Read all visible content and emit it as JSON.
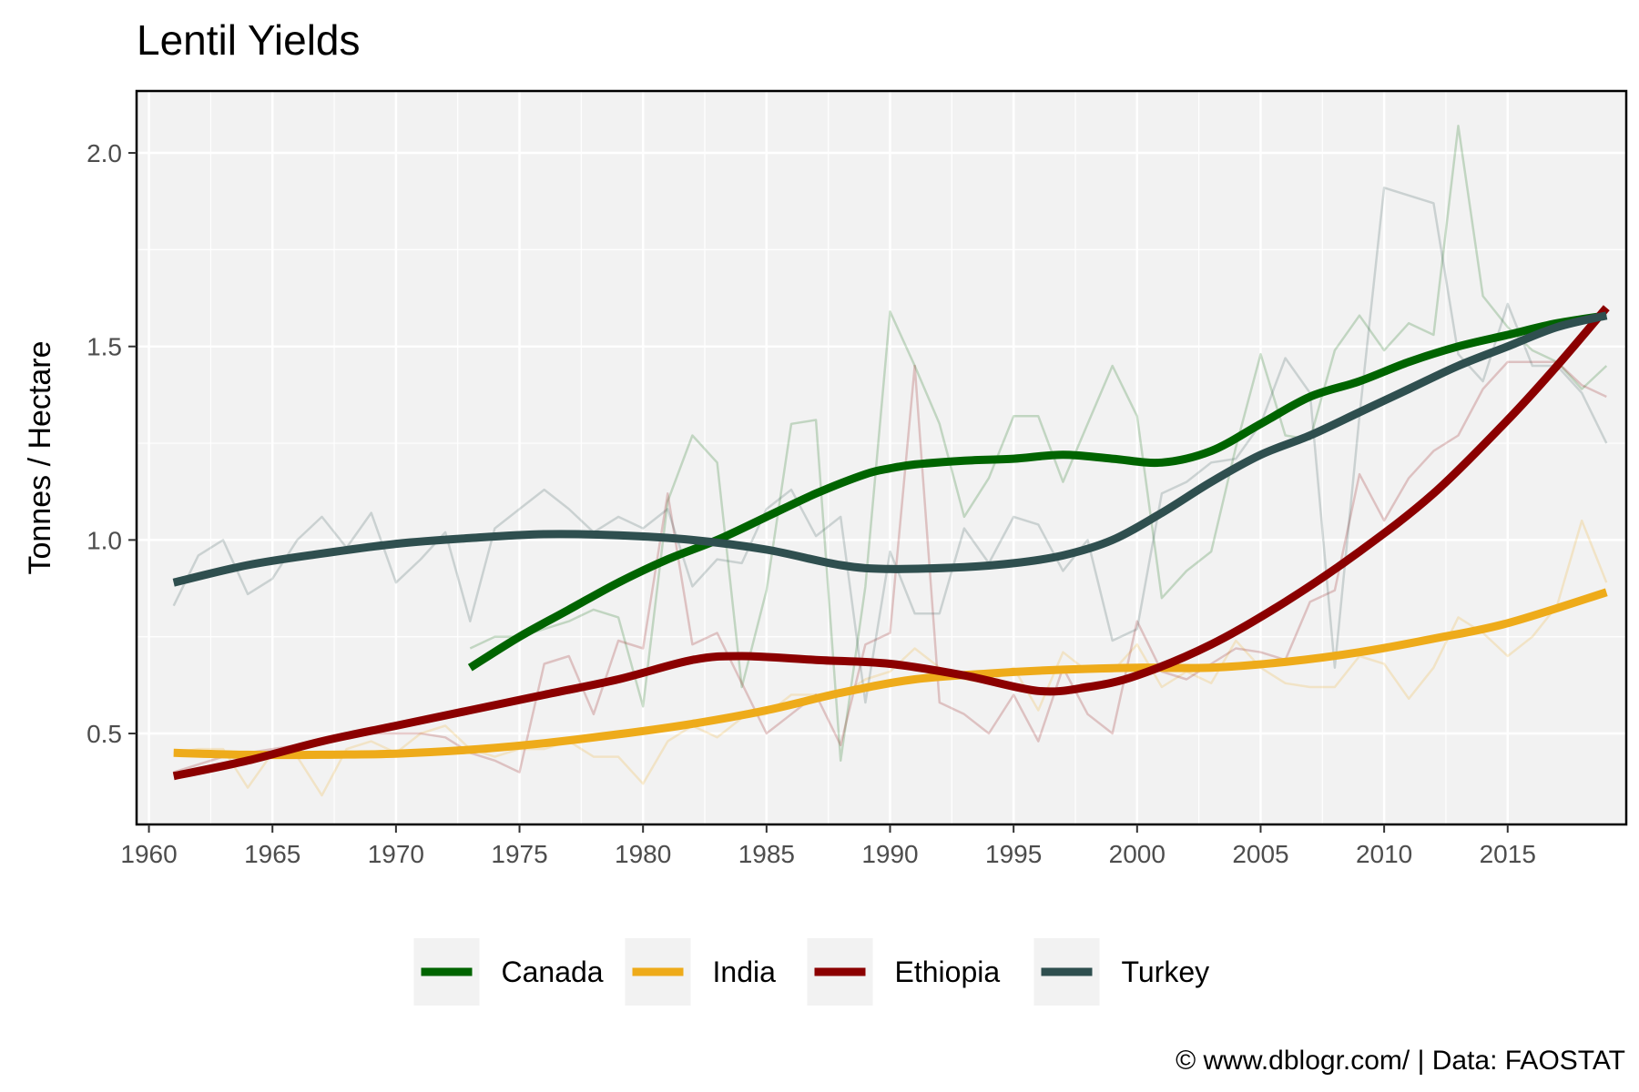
{
  "chart_data": {
    "type": "line",
    "title": "Lentil Yields",
    "xlabel": "",
    "ylabel": "Tonnes / Hectare",
    "xlim": [
      1959.5,
      2019.8
    ],
    "ylim": [
      0.265,
      2.16
    ],
    "x_ticks": [
      1960,
      1965,
      1970,
      1975,
      1980,
      1985,
      1990,
      1995,
      2000,
      2005,
      2010,
      2015
    ],
    "y_ticks": [
      0.5,
      1.0,
      1.5,
      2.0
    ],
    "y_tick_labels": [
      "0.5",
      "1.0",
      "1.5",
      "2.0"
    ],
    "grid": true,
    "legend_position": "bottom",
    "caption": "© www.dblogr.com/  |  Data: FAOSTAT",
    "series": [
      {
        "name": "Canada",
        "color": "#006400",
        "raw": {
          "x": [
            1973,
            1974,
            1975,
            1976,
            1977,
            1978,
            1979,
            1980,
            1981,
            1982,
            1983,
            1984,
            1985,
            1986,
            1987,
            1988,
            1989,
            1990,
            1991,
            1992,
            1993,
            1994,
            1995,
            1996,
            1997,
            1998,
            1999,
            2000,
            2001,
            2002,
            2003,
            2004,
            2005,
            2006,
            2007,
            2008,
            2009,
            2010,
            2011,
            2012,
            2013,
            2014,
            2015,
            2016,
            2017,
            2018,
            2019
          ],
          "y": [
            0.72,
            0.75,
            0.75,
            0.77,
            0.79,
            0.82,
            0.8,
            0.57,
            1.1,
            1.27,
            1.2,
            0.62,
            0.87,
            1.3,
            1.31,
            0.43,
            0.88,
            1.59,
            1.45,
            1.3,
            1.06,
            1.16,
            1.32,
            1.32,
            1.15,
            1.3,
            1.45,
            1.32,
            0.85,
            0.92,
            0.97,
            1.24,
            1.48,
            1.27,
            1.26,
            1.49,
            1.58,
            1.49,
            1.56,
            1.53,
            2.07,
            1.63,
            1.55,
            1.49,
            1.46,
            1.39,
            1.45
          ]
        },
        "trend": {
          "x": [
            1973,
            1975,
            1977,
            1979,
            1981,
            1983,
            1985,
            1987,
            1989,
            1990,
            1991,
            1993,
            1995,
            1997,
            1999,
            2001,
            2003,
            2005,
            2007,
            2009,
            2011,
            2013,
            2015,
            2017,
            2019
          ],
          "y": [
            0.67,
            0.75,
            0.82,
            0.89,
            0.95,
            1.0,
            1.06,
            1.12,
            1.17,
            1.185,
            1.195,
            1.205,
            1.21,
            1.22,
            1.21,
            1.2,
            1.23,
            1.3,
            1.37,
            1.41,
            1.46,
            1.5,
            1.53,
            1.56,
            1.58
          ]
        }
      },
      {
        "name": "India",
        "color": "#eeab1a",
        "raw": {
          "x": [
            1961,
            1962,
            1963,
            1964,
            1965,
            1966,
            1967,
            1968,
            1969,
            1970,
            1971,
            1972,
            1973,
            1974,
            1975,
            1976,
            1977,
            1978,
            1979,
            1980,
            1981,
            1982,
            1983,
            1984,
            1985,
            1986,
            1987,
            1988,
            1989,
            1990,
            1991,
            1992,
            1993,
            1994,
            1995,
            1996,
            1997,
            1998,
            1999,
            2000,
            2001,
            2002,
            2003,
            2004,
            2005,
            2006,
            2007,
            2008,
            2009,
            2010,
            2011,
            2012,
            2013,
            2014,
            2015,
            2016,
            2017,
            2018,
            2019
          ],
          "y": [
            0.45,
            0.46,
            0.46,
            0.36,
            0.45,
            0.44,
            0.34,
            0.46,
            0.48,
            0.45,
            0.5,
            0.52,
            0.46,
            0.44,
            0.46,
            0.46,
            0.48,
            0.44,
            0.44,
            0.37,
            0.48,
            0.52,
            0.49,
            0.54,
            0.55,
            0.6,
            0.6,
            0.6,
            0.64,
            0.66,
            0.72,
            0.67,
            0.64,
            0.63,
            0.67,
            0.56,
            0.71,
            0.66,
            0.66,
            0.73,
            0.62,
            0.66,
            0.63,
            0.74,
            0.67,
            0.63,
            0.62,
            0.62,
            0.7,
            0.68,
            0.59,
            0.67,
            0.8,
            0.76,
            0.7,
            0.75,
            0.83,
            1.05,
            0.89
          ]
        },
        "trend": {
          "x": [
            1961,
            1964,
            1967,
            1970,
            1973,
            1976,
            1979,
            1982,
            1985,
            1988,
            1991,
            1994,
            1997,
            2000,
            2003,
            2006,
            2009,
            2012,
            2015,
            2019
          ],
          "y": [
            0.45,
            0.445,
            0.445,
            0.448,
            0.458,
            0.475,
            0.498,
            0.525,
            0.56,
            0.605,
            0.64,
            0.655,
            0.665,
            0.67,
            0.67,
            0.685,
            0.71,
            0.745,
            0.785,
            0.865
          ]
        }
      },
      {
        "name": "Ethiopia",
        "color": "#8b0000",
        "raw": {
          "x": [
            1961,
            1962,
            1963,
            1964,
            1965,
            1966,
            1967,
            1968,
            1969,
            1970,
            1971,
            1972,
            1973,
            1974,
            1975,
            1976,
            1977,
            1978,
            1979,
            1980,
            1981,
            1982,
            1983,
            1984,
            1985,
            1986,
            1987,
            1988,
            1989,
            1990,
            1991,
            1992,
            1993,
            1994,
            1995,
            1996,
            1997,
            1998,
            1999,
            2000,
            2001,
            2002,
            2003,
            2004,
            2005,
            2006,
            2007,
            2008,
            2009,
            2010,
            2011,
            2012,
            2013,
            2014,
            2015,
            2016,
            2017,
            2018,
            2019
          ],
          "y": [
            0.4,
            0.42,
            0.44,
            0.45,
            0.46,
            0.47,
            0.48,
            0.49,
            0.5,
            0.5,
            0.5,
            0.49,
            0.45,
            0.43,
            0.4,
            0.68,
            0.7,
            0.55,
            0.74,
            0.72,
            1.12,
            0.73,
            0.76,
            0.63,
            0.5,
            0.55,
            0.6,
            0.47,
            0.73,
            0.76,
            1.45,
            0.58,
            0.55,
            0.5,
            0.6,
            0.48,
            0.67,
            0.55,
            0.5,
            0.79,
            0.66,
            0.64,
            0.68,
            0.72,
            0.71,
            0.69,
            0.84,
            0.87,
            1.17,
            1.05,
            1.16,
            1.23,
            1.27,
            1.39,
            1.46,
            1.46,
            1.46,
            1.4,
            1.37
          ]
        },
        "trend": {
          "x": [
            1961,
            1964,
            1967,
            1970,
            1973,
            1976,
            1979,
            1982,
            1984,
            1987,
            1990,
            1993,
            1996,
            1998,
            2000,
            2003,
            2006,
            2009,
            2012,
            2015,
            2017,
            2019
          ],
          "y": [
            0.39,
            0.43,
            0.48,
            0.52,
            0.56,
            0.6,
            0.64,
            0.69,
            0.7,
            0.69,
            0.68,
            0.65,
            0.61,
            0.62,
            0.65,
            0.73,
            0.84,
            0.97,
            1.12,
            1.31,
            1.45,
            1.6
          ]
        }
      },
      {
        "name": "Turkey",
        "color": "#2f4f4f",
        "raw": {
          "x": [
            1961,
            1962,
            1963,
            1964,
            1965,
            1966,
            1967,
            1968,
            1969,
            1970,
            1971,
            1972,
            1973,
            1974,
            1975,
            1976,
            1977,
            1978,
            1979,
            1980,
            1981,
            1982,
            1983,
            1984,
            1985,
            1986,
            1987,
            1988,
            1989,
            1990,
            1991,
            1992,
            1993,
            1994,
            1995,
            1996,
            1997,
            1998,
            1999,
            2000,
            2001,
            2002,
            2003,
            2004,
            2005,
            2006,
            2007,
            2008,
            2009,
            2010,
            2011,
            2012,
            2013,
            2014,
            2015,
            2016,
            2017,
            2018,
            2019
          ],
          "y": [
            0.83,
            0.96,
            1.0,
            0.86,
            0.9,
            1.0,
            1.06,
            0.98,
            1.07,
            0.89,
            0.95,
            1.02,
            0.79,
            1.03,
            1.08,
            1.13,
            1.08,
            1.02,
            1.06,
            1.03,
            1.08,
            0.88,
            0.95,
            0.94,
            1.08,
            1.13,
            1.01,
            1.06,
            0.58,
            0.97,
            0.81,
            0.81,
            1.03,
            0.94,
            1.06,
            1.04,
            0.92,
            1.0,
            0.74,
            0.77,
            1.12,
            1.15,
            1.2,
            1.21,
            1.3,
            1.47,
            1.38,
            0.67,
            1.32,
            1.91,
            1.89,
            1.87,
            1.48,
            1.41,
            1.61,
            1.45,
            1.45,
            1.38,
            1.25
          ]
        },
        "trend": {
          "x": [
            1961,
            1964,
            1967,
            1970,
            1973,
            1976,
            1979,
            1982,
            1985,
            1988,
            1990,
            1993,
            1995,
            1997,
            1999,
            2001,
            2003,
            2005,
            2007,
            2009,
            2011,
            2013,
            2015,
            2017,
            2019
          ],
          "y": [
            0.89,
            0.935,
            0.965,
            0.99,
            1.005,
            1.015,
            1.012,
            1.0,
            0.975,
            0.935,
            0.925,
            0.93,
            0.94,
            0.96,
            1.0,
            1.07,
            1.15,
            1.22,
            1.27,
            1.33,
            1.39,
            1.45,
            1.5,
            1.55,
            1.58
          ]
        }
      }
    ]
  }
}
